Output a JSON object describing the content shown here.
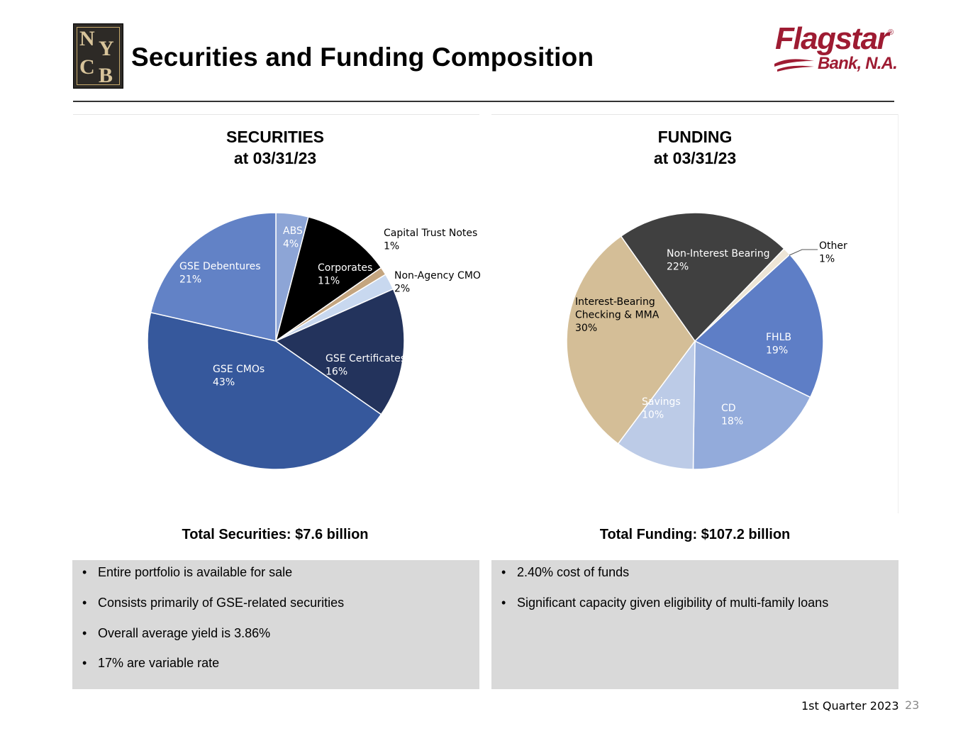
{
  "header": {
    "title": "Securities and Funding Composition",
    "logo_letters": [
      "N",
      "Y",
      "C",
      "B"
    ],
    "brand_name": "Flagstar",
    "brand_sub": "Bank, N.A.",
    "brand_reg": "®"
  },
  "chart_data": [
    {
      "type": "pie",
      "title": "SECURITIES",
      "subtitle": "at 03/31/23",
      "total_label": "Total Securities: $7.6 billion",
      "slices": [
        {
          "name": "ABS",
          "value": 4,
          "color": "#8da5d6",
          "label_color": "#ffffff"
        },
        {
          "name": "Corporates",
          "value": 11,
          "color": "#000000",
          "label_color": "#ffffff"
        },
        {
          "name": "Capital Trust Notes",
          "value": 1,
          "color": "#c4a57f",
          "label_color": "#000000"
        },
        {
          "name": "Non-Agency CMO",
          "value": 2,
          "color": "#c8d8ef",
          "label_color": "#000000"
        },
        {
          "name": "GSE Certificates",
          "value": 16,
          "color": "#23335c",
          "label_color": "#ffffff"
        },
        {
          "name": "GSE CMOs",
          "value": 43,
          "color": "#36589c",
          "label_color": "#ffffff"
        },
        {
          "name": "GSE Debentures",
          "value": 21,
          "color": "#6282c6",
          "label_color": "#ffffff"
        }
      ]
    },
    {
      "type": "pie",
      "title": "FUNDING",
      "subtitle": "at 03/31/23",
      "total_label": "Total Funding: $107.2 billion",
      "slices": [
        {
          "name": "Other",
          "value": 1,
          "color": "#ede5d6",
          "label_color": "#000000"
        },
        {
          "name": "FHLB",
          "value": 19,
          "color": "#5e7ec6",
          "label_color": "#ffffff"
        },
        {
          "name": "CD",
          "value": 18,
          "color": "#93abdb",
          "label_color": "#ffffff"
        },
        {
          "name": "Savings",
          "value": 10,
          "color": "#bccbe7",
          "label_color": "#ffffff"
        },
        {
          "name": "Interest-Bearing Checking & MMA",
          "value": 30,
          "color": "#d4be97",
          "label_color": "#000000"
        },
        {
          "name": "Non-Interest Bearing",
          "value": 22,
          "color": "#404040",
          "label_color": "#ffffff"
        }
      ]
    }
  ],
  "pie_labels": {
    "securities": [
      {
        "lines": [
          "ABS",
          "4%"
        ]
      },
      {
        "lines": [
          "Corporates",
          "11%"
        ]
      },
      {
        "lines": [
          "Capital Trust Notes",
          "1%"
        ]
      },
      {
        "lines": [
          "Non-Agency CMO",
          "2%"
        ]
      },
      {
        "lines": [
          "GSE Certificates",
          "16%"
        ]
      },
      {
        "lines": [
          "GSE CMOs",
          "43%"
        ]
      },
      {
        "lines": [
          "GSE Debentures",
          "21%"
        ]
      }
    ],
    "funding": [
      {
        "lines": [
          "Other",
          "1%"
        ]
      },
      {
        "lines": [
          "FHLB",
          "19%"
        ]
      },
      {
        "lines": [
          "CD",
          "18%"
        ]
      },
      {
        "lines": [
          "Savings",
          "10%"
        ]
      },
      {
        "lines": [
          "Interest-Bearing",
          "Checking & MMA",
          "30%"
        ]
      },
      {
        "lines": [
          "Non-Interest Bearing",
          "22%"
        ]
      }
    ]
  },
  "securities_bullets": [
    "Entire portfolio is available for sale",
    "Consists primarily of GSE-related securities",
    "Overall average yield is 3.86%",
    "17% are variable rate"
  ],
  "funding_bullets": [
    "2.40% cost of funds",
    "Significant capacity given eligibility of multi-family loans"
  ],
  "bullet_char": "•",
  "footer": {
    "quarter": "1st Quarter 2023",
    "page_number": "23"
  }
}
